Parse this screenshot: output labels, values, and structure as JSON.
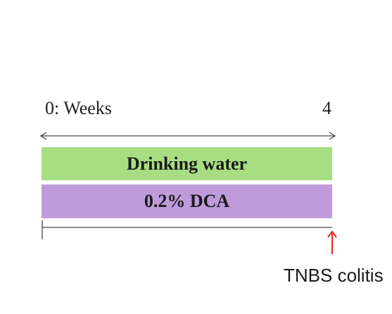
{
  "timeline": {
    "start_label": "0: Weeks",
    "end_label": "4"
  },
  "groups": [
    {
      "label": "Drinking water",
      "color": "#a8de82"
    },
    {
      "label": "0.2% DCA",
      "color": "#bf9bdb"
    }
  ],
  "event": {
    "label": "TNBS colitis",
    "arrow_color": "#e8231e"
  }
}
